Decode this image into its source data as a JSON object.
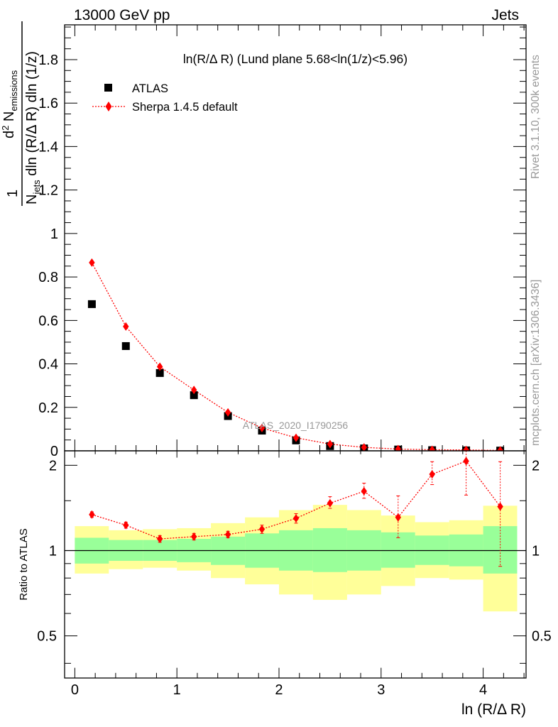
{
  "header": {
    "energy_label": "13000 GeV pp",
    "category_label": "Jets"
  },
  "side_labels": {
    "rivet": "Rivet 3.1.10,  300k events",
    "mcplots": "mcplots.cern.ch [arXiv:1306.3436]"
  },
  "chart_data": {
    "type": "scatter",
    "title": "ln(R/Δ R) (Lund plane 5.68<ln(1/z)<5.96)",
    "analysis_label": "ATLAS_2020_I1790256",
    "xlabel": "ln (R/Δ R)",
    "ylabel": "1/N_jets d²N_emissions / dln(R/Δ R) dln(1/z)",
    "ratio_ylabel": "Ratio to ATLAS",
    "xlim": [
      -0.1,
      4.42
    ],
    "ylim": [
      0,
      1.96
    ],
    "ratio_ylim": [
      0.355,
      2.25
    ],
    "ratio_scale": "log",
    "x_ticks": [
      "0",
      "1",
      "2",
      "3",
      "4"
    ],
    "y_ticks": [
      "0",
      "0.2",
      "0.4",
      "0.6",
      "0.8",
      "1",
      "1.2",
      "1.4",
      "1.6",
      "1.8"
    ],
    "ratio_ticks": [
      "0.5",
      "1",
      "2"
    ],
    "legend_position": "top-left",
    "bin_edges": [
      0.0,
      0.333,
      0.667,
      1.0,
      1.333,
      1.667,
      2.0,
      2.333,
      2.667,
      3.0,
      3.333,
      3.667,
      4.0,
      4.333
    ],
    "x": [
      0.167,
      0.5,
      0.833,
      1.167,
      1.5,
      1.833,
      2.167,
      2.5,
      2.833,
      3.167,
      3.5,
      3.833,
      4.167
    ],
    "series": [
      {
        "name": "ATLAS",
        "marker": "square",
        "color": "#000000",
        "values": [
          0.675,
          0.482,
          0.358,
          0.256,
          0.16,
          0.093,
          0.048,
          0.022,
          0.011,
          0.006,
          0.003,
          0.002,
          0.001
        ]
      },
      {
        "name": "Sherpa 1.4.5 default",
        "marker": "diamond",
        "color": "#ff0000",
        "values": [
          0.866,
          0.572,
          0.387,
          0.28,
          0.177,
          0.105,
          0.06,
          0.031,
          0.016,
          0.008,
          0.005,
          0.004,
          0.002
        ]
      }
    ],
    "ratio": {
      "values": [
        1.34,
        1.23,
        1.1,
        1.12,
        1.14,
        1.19,
        1.3,
        1.47,
        1.62,
        1.31,
        1.86,
        2.07,
        1.43
      ],
      "err_low": [
        0.03,
        0.03,
        0.03,
        0.03,
        0.03,
        0.04,
        0.05,
        0.06,
        0.09,
        0.2,
        0.15,
        0.5,
        0.55
      ],
      "err_high": [
        0.03,
        0.03,
        0.03,
        0.03,
        0.03,
        0.04,
        0.05,
        0.08,
        0.11,
        0.25,
        0.2,
        0.4,
        0.63
      ],
      "green_band_low": [
        0.9,
        0.92,
        0.92,
        0.91,
        0.89,
        0.87,
        0.85,
        0.84,
        0.85,
        0.87,
        0.89,
        0.88,
        0.83
      ],
      "green_band_high": [
        1.11,
        1.09,
        1.09,
        1.1,
        1.12,
        1.15,
        1.18,
        1.2,
        1.18,
        1.16,
        1.13,
        1.14,
        1.22
      ],
      "yellow_band_low": [
        0.83,
        0.86,
        0.87,
        0.85,
        0.8,
        0.76,
        0.7,
        0.67,
        0.7,
        0.75,
        0.8,
        0.79,
        0.61
      ],
      "yellow_band_high": [
        1.22,
        1.18,
        1.19,
        1.2,
        1.25,
        1.31,
        1.39,
        1.45,
        1.39,
        1.33,
        1.26,
        1.28,
        1.44
      ]
    }
  },
  "colors": {
    "green_band": "#99ff99",
    "yellow_band": "#ffff99",
    "watermark": "#999999",
    "data_marker": "#000000",
    "mc_marker": "#ff0000"
  }
}
